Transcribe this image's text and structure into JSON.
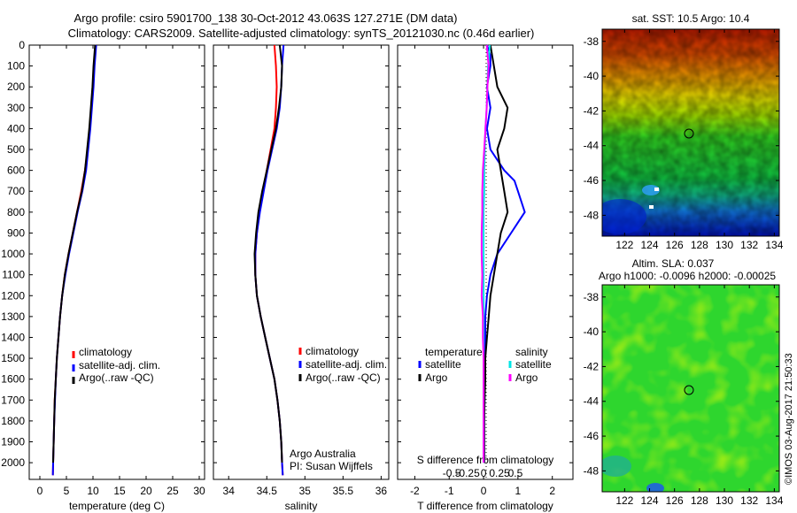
{
  "header": {
    "line1": "Argo profile: csiro 5901700_138 30-Oct-2012 43.063S 127.271E (DM data)",
    "line2": "Climatology: CARS2009. Satellite-adjusted climatology: synTS_20121030.nc (0.46d earlier)"
  },
  "colors": {
    "climatology": "#ff0000",
    "satellite": "#0000ff",
    "argo": "#000000",
    "salinity_sat": "#00e5e5",
    "salinity_argo": "#ff00ff"
  },
  "axes": {
    "depth_ticks": [
      "0",
      "100",
      "200",
      "300",
      "400",
      "500",
      "600",
      "700",
      "800",
      "900",
      "1000",
      "1100",
      "1200",
      "1300",
      "1400",
      "1500",
      "1600",
      "1700",
      "1800",
      "1900",
      "2000"
    ],
    "temperature": {
      "xlabel": "temperature (deg C)",
      "ticks": [
        "0",
        "5",
        "10",
        "15",
        "20",
        "25",
        "30"
      ]
    },
    "salinity": {
      "xlabel": "salinity",
      "ticks": [
        "34",
        "34.5",
        "35",
        "35.5",
        "36"
      ]
    },
    "diff": {
      "xlabel_bottom": "T difference from climatology",
      "ticks_T": [
        "-2",
        "-1",
        "0",
        "1",
        "2"
      ],
      "xlabel_top": "S difference from climatology",
      "ticks_S": [
        "-0.5",
        "-0.25",
        "0",
        "0.25",
        "0.5"
      ]
    }
  },
  "legend": {
    "climatology": "climatology",
    "satellite": "satellite-adj. clim.",
    "argo": "Argo(..raw -QC)"
  },
  "diff_legend": {
    "temperature_title": "temperature",
    "salinity_title": "salinity",
    "satellite": "satellite",
    "argo": "Argo"
  },
  "credit": {
    "line1": "Argo Australia",
    "line2": "PI: Susan Wijffels"
  },
  "maps": {
    "top": {
      "title": "sat. SST: 10.5  Argo: 10.4",
      "yticks": [
        "-38",
        "-40",
        "-42",
        "-44",
        "-46",
        "-48"
      ],
      "xticks": [
        "122",
        "124",
        "126",
        "128",
        "130",
        "132",
        "134"
      ]
    },
    "bottom": {
      "title1": "Altim. SLA: 0.037",
      "title2": "Argo h1000: -0.0096  h2000: -0.00025",
      "yticks": [
        "-38",
        "-40",
        "-42",
        "-44",
        "-46",
        "-48"
      ],
      "xticks": [
        "122",
        "124",
        "126",
        "128",
        "130",
        "132",
        "134"
      ]
    }
  },
  "watermark": "©IMOS 03-Aug-2017 21:50:33",
  "chart_data": [
    {
      "type": "line",
      "name": "temperature profile",
      "xlabel": "temperature (deg C)",
      "ylabel": "depth",
      "xlim": [
        -2,
        31
      ],
      "ylim": [
        2080,
        0
      ],
      "series": [
        {
          "name": "climatology",
          "depth": [
            0,
            100,
            200,
            300,
            400,
            500,
            600,
            700,
            800,
            900,
            1000,
            1100,
            1200,
            1300,
            1400,
            1500,
            1600,
            1700,
            1800,
            1900,
            2000,
            2060
          ],
          "values": [
            10.5,
            10.2,
            10.0,
            9.7,
            9.4,
            9.0,
            8.5,
            7.8,
            7.0,
            6.2,
            5.4,
            4.7,
            4.2,
            3.8,
            3.5,
            3.2,
            3.0,
            2.8,
            2.7,
            2.6,
            2.5,
            2.45
          ]
        },
        {
          "name": "satellite-adj. clim.",
          "depth": [
            0,
            100,
            200,
            300,
            400,
            500,
            600,
            700,
            800,
            900,
            1000,
            1100,
            1200,
            1300,
            1400,
            1500,
            1600,
            1700,
            1800,
            1900,
            2000,
            2060
          ],
          "values": [
            10.6,
            10.3,
            10.1,
            9.8,
            9.5,
            9.1,
            8.7,
            8.0,
            7.1,
            6.3,
            5.5,
            4.8,
            4.2,
            3.8,
            3.5,
            3.2,
            3.0,
            2.85,
            2.7,
            2.6,
            2.5,
            2.45
          ]
        },
        {
          "name": "Argo",
          "depth": [
            0,
            100,
            200,
            300,
            400,
            500,
            600,
            700,
            800,
            900,
            1000,
            1100,
            1200,
            1300,
            1400,
            1500,
            1600,
            1700,
            1800,
            1900,
            2000
          ],
          "values": [
            10.4,
            10.1,
            9.9,
            9.6,
            9.3,
            8.9,
            8.5,
            7.9,
            7.0,
            6.2,
            5.4,
            4.7,
            4.2,
            3.8,
            3.5,
            3.2,
            3.0,
            2.8,
            2.7,
            2.6,
            2.5
          ]
        }
      ]
    },
    {
      "type": "line",
      "name": "salinity profile",
      "xlabel": "salinity",
      "ylabel": "depth",
      "xlim": [
        33.8,
        36.1
      ],
      "ylim": [
        2080,
        0
      ],
      "series": [
        {
          "name": "climatology",
          "depth": [
            0,
            100,
            200,
            300,
            400,
            500,
            600,
            700,
            800,
            900,
            1000,
            1100,
            1200,
            1300,
            1400,
            1500,
            1600,
            1700,
            1800,
            1900,
            2000,
            2060
          ],
          "values": [
            34.6,
            34.62,
            34.63,
            34.62,
            34.6,
            34.55,
            34.5,
            34.45,
            34.4,
            34.37,
            34.35,
            34.35,
            34.37,
            34.42,
            34.48,
            34.54,
            34.6,
            34.64,
            34.67,
            34.69,
            34.7,
            34.71
          ]
        },
        {
          "name": "satellite-adj. clim.",
          "depth": [
            0,
            100,
            200,
            300,
            400,
            500,
            600,
            700,
            800,
            900,
            1000,
            1100,
            1200,
            1300,
            1400,
            1500,
            1600,
            1700,
            1800,
            1900,
            2000,
            2060
          ],
          "values": [
            34.72,
            34.7,
            34.69,
            34.67,
            34.63,
            34.57,
            34.51,
            34.46,
            34.41,
            34.37,
            34.35,
            34.35,
            34.37,
            34.42,
            34.48,
            34.54,
            34.6,
            34.64,
            34.67,
            34.69,
            34.7,
            34.71
          ]
        },
        {
          "name": "Argo",
          "depth": [
            0,
            100,
            200,
            300,
            400,
            500,
            600,
            700,
            800,
            900,
            1000,
            1100,
            1200,
            1300,
            1400,
            1500,
            1600,
            1700,
            1800,
            1900,
            2000
          ],
          "values": [
            34.67,
            34.7,
            34.69,
            34.66,
            34.62,
            34.56,
            34.5,
            34.44,
            34.39,
            34.36,
            34.34,
            34.35,
            34.37,
            34.42,
            34.48,
            34.54,
            34.6,
            34.64,
            34.67,
            34.69,
            34.7
          ]
        }
      ]
    },
    {
      "type": "line",
      "name": "difference from climatology",
      "xlabel": "T difference from climatology",
      "ylabel": "depth",
      "xlim": [
        -2.5,
        2.6
      ],
      "ylim": [
        2080,
        0
      ],
      "series": [
        {
          "name": "temperature satellite",
          "depth": [
            0,
            50,
            100,
            200,
            300,
            400,
            500,
            600,
            650,
            700,
            800,
            900,
            1000,
            1100,
            1200,
            1300,
            1400,
            1500,
            1600,
            1700,
            1800,
            1900,
            2000
          ],
          "values": [
            0.1,
            0.2,
            0.2,
            0.1,
            0.2,
            0.1,
            0.2,
            0.6,
            0.9,
            1.0,
            1.2,
            0.8,
            0.4,
            0.2,
            0.1,
            0.05,
            0.05,
            0.05,
            0.03,
            0.03,
            0.02,
            0.02,
            0.02
          ]
        },
        {
          "name": "temperature Argo",
          "depth": [
            0,
            100,
            200,
            300,
            400,
            500,
            600,
            700,
            800,
            900,
            1000,
            1100,
            1200,
            1300,
            1400,
            1500,
            1600,
            1700,
            1800,
            1900,
            2000
          ],
          "values": [
            0.2,
            0.3,
            0.4,
            0.7,
            0.6,
            0.4,
            0.5,
            0.6,
            0.7,
            0.5,
            0.4,
            0.3,
            0.2,
            0.15,
            0.1,
            0.05,
            0.05,
            0.03,
            0.02,
            0.02,
            0.02
          ]
        },
        {
          "name": "salinity satellite",
          "depth": [
            0,
            100,
            200,
            300,
            400,
            500,
            600,
            700,
            800,
            900,
            1000,
            1100,
            1200,
            1300,
            1400,
            1500,
            1600,
            1700,
            1800,
            1900,
            2000
          ],
          "values": [
            0.1,
            0.07,
            0.06,
            0.05,
            0.03,
            0.02,
            0.01,
            0.01,
            0.0,
            0.0,
            0.0,
            0.0,
            0.0,
            0.0,
            0.0,
            0.0,
            0.0,
            0.0,
            0.0,
            0.0,
            0.0
          ]
        },
        {
          "name": "salinity Argo",
          "depth": [
            0,
            100,
            200,
            300,
            400,
            500,
            600,
            700,
            800,
            900,
            1000,
            1100,
            1200,
            1300,
            1400,
            1500,
            1600,
            1700,
            1800,
            1900,
            2000
          ],
          "values": [
            0.05,
            0.08,
            0.06,
            0.05,
            0.03,
            0.01,
            -0.01,
            -0.02,
            -0.02,
            -0.03,
            -0.03,
            -0.02,
            -0.03,
            -0.01,
            -0.01,
            0.0,
            0.0,
            0.0,
            0.0,
            0.0,
            0.0
          ]
        }
      ]
    }
  ]
}
